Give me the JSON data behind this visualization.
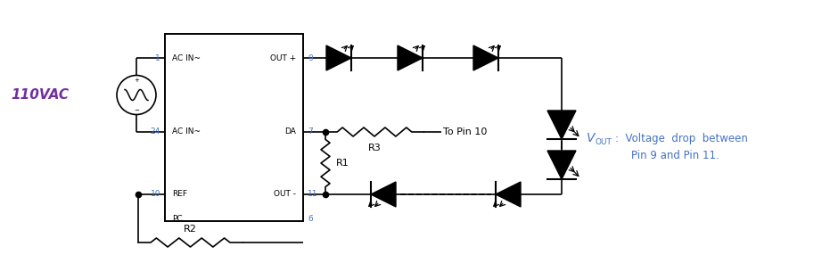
{
  "bg_color": "#ffffff",
  "line_color": "#000000",
  "purple_color": "#7030a0",
  "blue_color": "#4472c4",
  "label_110vac": "110VAC",
  "label_r1": "R1",
  "label_r2": "R2",
  "label_r3": "R3",
  "label_to_pin10": "To Pin 10",
  "vout_desc1": "Voltage  drop  between",
  "vout_desc2": "Pin 9 and Pin 11."
}
